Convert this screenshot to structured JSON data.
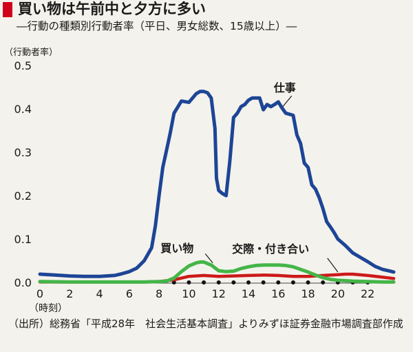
{
  "title": "買い物は午前中と夕方に多い",
  "subtitle": "―行動の種類別行動者率（平日、男女総数、15歳以上）―",
  "source": "（出所）総務省「平成28年　社会生活基本調査」よりみずほ証券金融市場調査部作成",
  "colors": {
    "accent": "#d0021b",
    "background": "#f4f2ec",
    "work": "#1d4596",
    "shopping": "#44b548",
    "social": "#cc1a1a"
  },
  "chart_data": {
    "type": "line",
    "ylabel": "（行動者率）",
    "xlabel": "（時刻）",
    "xlim": [
      0,
      23.75
    ],
    "ylim": [
      0,
      0.5
    ],
    "x_ticks": [
      0,
      2,
      4,
      6,
      8,
      10,
      12,
      14,
      16,
      18,
      20,
      22
    ],
    "x_tick_labels": [
      "0",
      "2",
      "4",
      "6",
      "8",
      "10",
      "12",
      "14",
      "16",
      "18",
      "20",
      "22"
    ],
    "y_ticks": [
      0,
      0.1,
      0.2,
      0.3,
      0.4,
      0.5
    ],
    "y_tick_labels": [
      "0.0",
      "0.1",
      "0.2",
      "0.3",
      "0.4",
      "0.5"
    ],
    "grid": false,
    "series": [
      {
        "name": "仕事",
        "color": "#1d4596",
        "points": [
          [
            0,
            0.019
          ],
          [
            1,
            0.017
          ],
          [
            2,
            0.015
          ],
          [
            3,
            0.014
          ],
          [
            4,
            0.014
          ],
          [
            5,
            0.016
          ],
          [
            5.5,
            0.02
          ],
          [
            6,
            0.025
          ],
          [
            6.5,
            0.033
          ],
          [
            7,
            0.05
          ],
          [
            7.5,
            0.08
          ],
          [
            7.75,
            0.13
          ],
          [
            8,
            0.2
          ],
          [
            8.25,
            0.265
          ],
          [
            8.5,
            0.305
          ],
          [
            8.75,
            0.345
          ],
          [
            9,
            0.39
          ],
          [
            9.5,
            0.418
          ],
          [
            10,
            0.415
          ],
          [
            10.25,
            0.425
          ],
          [
            10.5,
            0.435
          ],
          [
            10.75,
            0.44
          ],
          [
            11,
            0.44
          ],
          [
            11.25,
            0.437
          ],
          [
            11.5,
            0.425
          ],
          [
            11.75,
            0.355
          ],
          [
            11.85,
            0.24
          ],
          [
            12,
            0.212
          ],
          [
            12.25,
            0.205
          ],
          [
            12.5,
            0.2
          ],
          [
            12.75,
            0.28
          ],
          [
            13,
            0.38
          ],
          [
            13.25,
            0.39
          ],
          [
            13.5,
            0.405
          ],
          [
            13.75,
            0.41
          ],
          [
            14,
            0.42
          ],
          [
            14.25,
            0.425
          ],
          [
            14.5,
            0.425
          ],
          [
            14.75,
            0.425
          ],
          [
            15,
            0.398
          ],
          [
            15.25,
            0.41
          ],
          [
            15.5,
            0.405
          ],
          [
            15.75,
            0.41
          ],
          [
            16,
            0.416
          ],
          [
            16.25,
            0.402
          ],
          [
            16.5,
            0.39
          ],
          [
            17,
            0.385
          ],
          [
            17.25,
            0.34
          ],
          [
            17.5,
            0.32
          ],
          [
            17.75,
            0.275
          ],
          [
            18,
            0.265
          ],
          [
            18.25,
            0.225
          ],
          [
            18.5,
            0.215
          ],
          [
            18.75,
            0.195
          ],
          [
            19,
            0.17
          ],
          [
            19.25,
            0.14
          ],
          [
            19.5,
            0.128
          ],
          [
            19.75,
            0.115
          ],
          [
            20,
            0.1
          ],
          [
            20.5,
            0.085
          ],
          [
            21,
            0.068
          ],
          [
            21.5,
            0.058
          ],
          [
            22,
            0.048
          ],
          [
            22.5,
            0.037
          ],
          [
            23,
            0.03
          ],
          [
            23.5,
            0.026
          ],
          [
            23.75,
            0.024
          ]
        ]
      },
      {
        "name": "買い物",
        "color": "#44b548",
        "points": [
          [
            0,
            0.002
          ],
          [
            2,
            0.001
          ],
          [
            4,
            0.001
          ],
          [
            6,
            0.001
          ],
          [
            7,
            0.001
          ],
          [
            8,
            0.002
          ],
          [
            8.5,
            0.003
          ],
          [
            9,
            0.01
          ],
          [
            9.5,
            0.025
          ],
          [
            10,
            0.038
          ],
          [
            10.5,
            0.045
          ],
          [
            10.75,
            0.047
          ],
          [
            11,
            0.047
          ],
          [
            11.5,
            0.04
          ],
          [
            12,
            0.027
          ],
          [
            12.5,
            0.025
          ],
          [
            13,
            0.026
          ],
          [
            13.5,
            0.032
          ],
          [
            14,
            0.036
          ],
          [
            14.5,
            0.039
          ],
          [
            15,
            0.04
          ],
          [
            15.5,
            0.04
          ],
          [
            16,
            0.04
          ],
          [
            16.5,
            0.039
          ],
          [
            17,
            0.036
          ],
          [
            17.5,
            0.03
          ],
          [
            18,
            0.024
          ],
          [
            18.5,
            0.017
          ],
          [
            19,
            0.011
          ],
          [
            19.5,
            0.007
          ],
          [
            20,
            0.005
          ],
          [
            21,
            0.003
          ],
          [
            22,
            0.002
          ],
          [
            23,
            0.001
          ],
          [
            23.75,
            0.001
          ]
        ]
      },
      {
        "name": "交際・付き合い",
        "color": "#cc1a1a",
        "points": [
          [
            0,
            0.001
          ],
          [
            4,
            0.001
          ],
          [
            7,
            0.001
          ],
          [
            8,
            0.002
          ],
          [
            9,
            0.006
          ],
          [
            9.5,
            0.01
          ],
          [
            10,
            0.014
          ],
          [
            11,
            0.016
          ],
          [
            12,
            0.014
          ],
          [
            13,
            0.015
          ],
          [
            14,
            0.016
          ],
          [
            15,
            0.017
          ],
          [
            16,
            0.016
          ],
          [
            17,
            0.014
          ],
          [
            18,
            0.014
          ],
          [
            19,
            0.016
          ],
          [
            20,
            0.018
          ],
          [
            20.5,
            0.019
          ],
          [
            21,
            0.019
          ],
          [
            22,
            0.016
          ],
          [
            23,
            0.012
          ],
          [
            23.75,
            0.009
          ]
        ]
      }
    ],
    "annotations": [
      {
        "text": "仕事",
        "x": 15.7,
        "y": 0.44,
        "series": "仕事"
      },
      {
        "text": "買い物",
        "x": 8.1,
        "y": 0.07,
        "series": "買い物"
      },
      {
        "text": "交際・付き合い",
        "x": 12.9,
        "y": 0.068,
        "series": "交際・付き合い"
      }
    ],
    "markers": {
      "x": [
        9,
        10,
        11,
        12,
        13,
        14,
        15,
        16,
        17,
        18,
        19,
        20,
        21,
        22
      ],
      "y": 0,
      "color": "#111111"
    }
  }
}
